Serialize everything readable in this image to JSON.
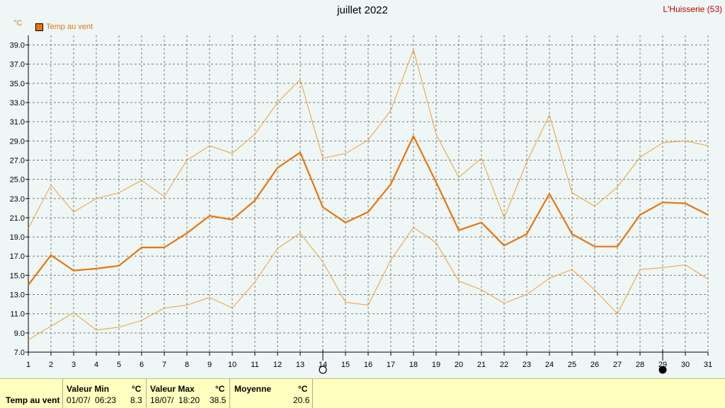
{
  "header": {
    "title": "juillet 2022",
    "station": "L'Huisserie (53)",
    "unit": "°C",
    "legend_label": "Temp au vent"
  },
  "chart_data": {
    "type": "line",
    "title": "juillet 2022",
    "ylabel": "°C",
    "ylim": [
      7.0,
      40.0
    ],
    "yticks": [
      "7.0",
      "9.0",
      "11.0",
      "13.0",
      "15.0",
      "17.0",
      "19.0",
      "21.0",
      "23.0",
      "25.0",
      "27.0",
      "29.0",
      "31.0",
      "33.0",
      "35.0",
      "37.0",
      "39.0"
    ],
    "x": [
      1,
      2,
      3,
      4,
      5,
      6,
      7,
      8,
      9,
      10,
      11,
      12,
      13,
      14,
      15,
      16,
      17,
      18,
      19,
      20,
      21,
      22,
      23,
      24,
      25,
      26,
      27,
      28,
      29,
      30,
      31
    ],
    "grid": true,
    "series": [
      {
        "name": "Temp au vent",
        "role": "mean",
        "color": "#e8760a",
        "values": [
          14.0,
          17.1,
          15.5,
          15.7,
          16.0,
          17.9,
          17.9,
          19.4,
          21.2,
          20.8,
          22.8,
          26.2,
          27.8,
          22.1,
          20.5,
          21.6,
          24.5,
          29.5,
          24.7,
          19.7,
          20.5,
          18.1,
          19.3,
          23.5,
          19.3,
          18.0,
          18.0,
          21.3,
          22.6,
          22.5,
          21.3
        ]
      },
      {
        "role": "max",
        "color": "#f0a030",
        "values": [
          19.9,
          24.4,
          21.6,
          23.0,
          23.6,
          24.9,
          23.2,
          27.0,
          28.5,
          27.7,
          29.7,
          33.0,
          35.4,
          27.2,
          27.7,
          29.1,
          32.2,
          38.5,
          29.7,
          25.2,
          27.2,
          21.0,
          26.8,
          31.7,
          23.6,
          22.2,
          24.2,
          27.3,
          28.8,
          29.0,
          28.5
        ]
      },
      {
        "role": "min",
        "color": "#f0a030",
        "values": [
          8.3,
          9.7,
          11.1,
          9.3,
          9.6,
          10.3,
          11.6,
          11.9,
          12.7,
          11.6,
          14.3,
          17.8,
          19.4,
          16.4,
          12.2,
          11.9,
          16.6,
          20.0,
          18.4,
          14.4,
          13.5,
          12.1,
          13.0,
          14.7,
          15.6,
          13.5,
          11.0,
          15.6,
          15.8,
          16.1,
          14.6
        ]
      }
    ],
    "markers": [
      {
        "day": 14,
        "phase": "new-moon"
      },
      {
        "day": 29,
        "phase": "full-moon"
      }
    ]
  },
  "footer": {
    "row_label": "Temp au vent",
    "min_header": "Valeur Min",
    "min_unit": "°C",
    "min_date": "01/07/  06:23",
    "min_value": "8.3",
    "max_header": "Valeur Max",
    "max_unit": "°C",
    "max_date": "18/07/  18:20",
    "max_value": "38.5",
    "avg_header": "Moyenne",
    "avg_unit": "°C",
    "avg_value": "20.6"
  }
}
